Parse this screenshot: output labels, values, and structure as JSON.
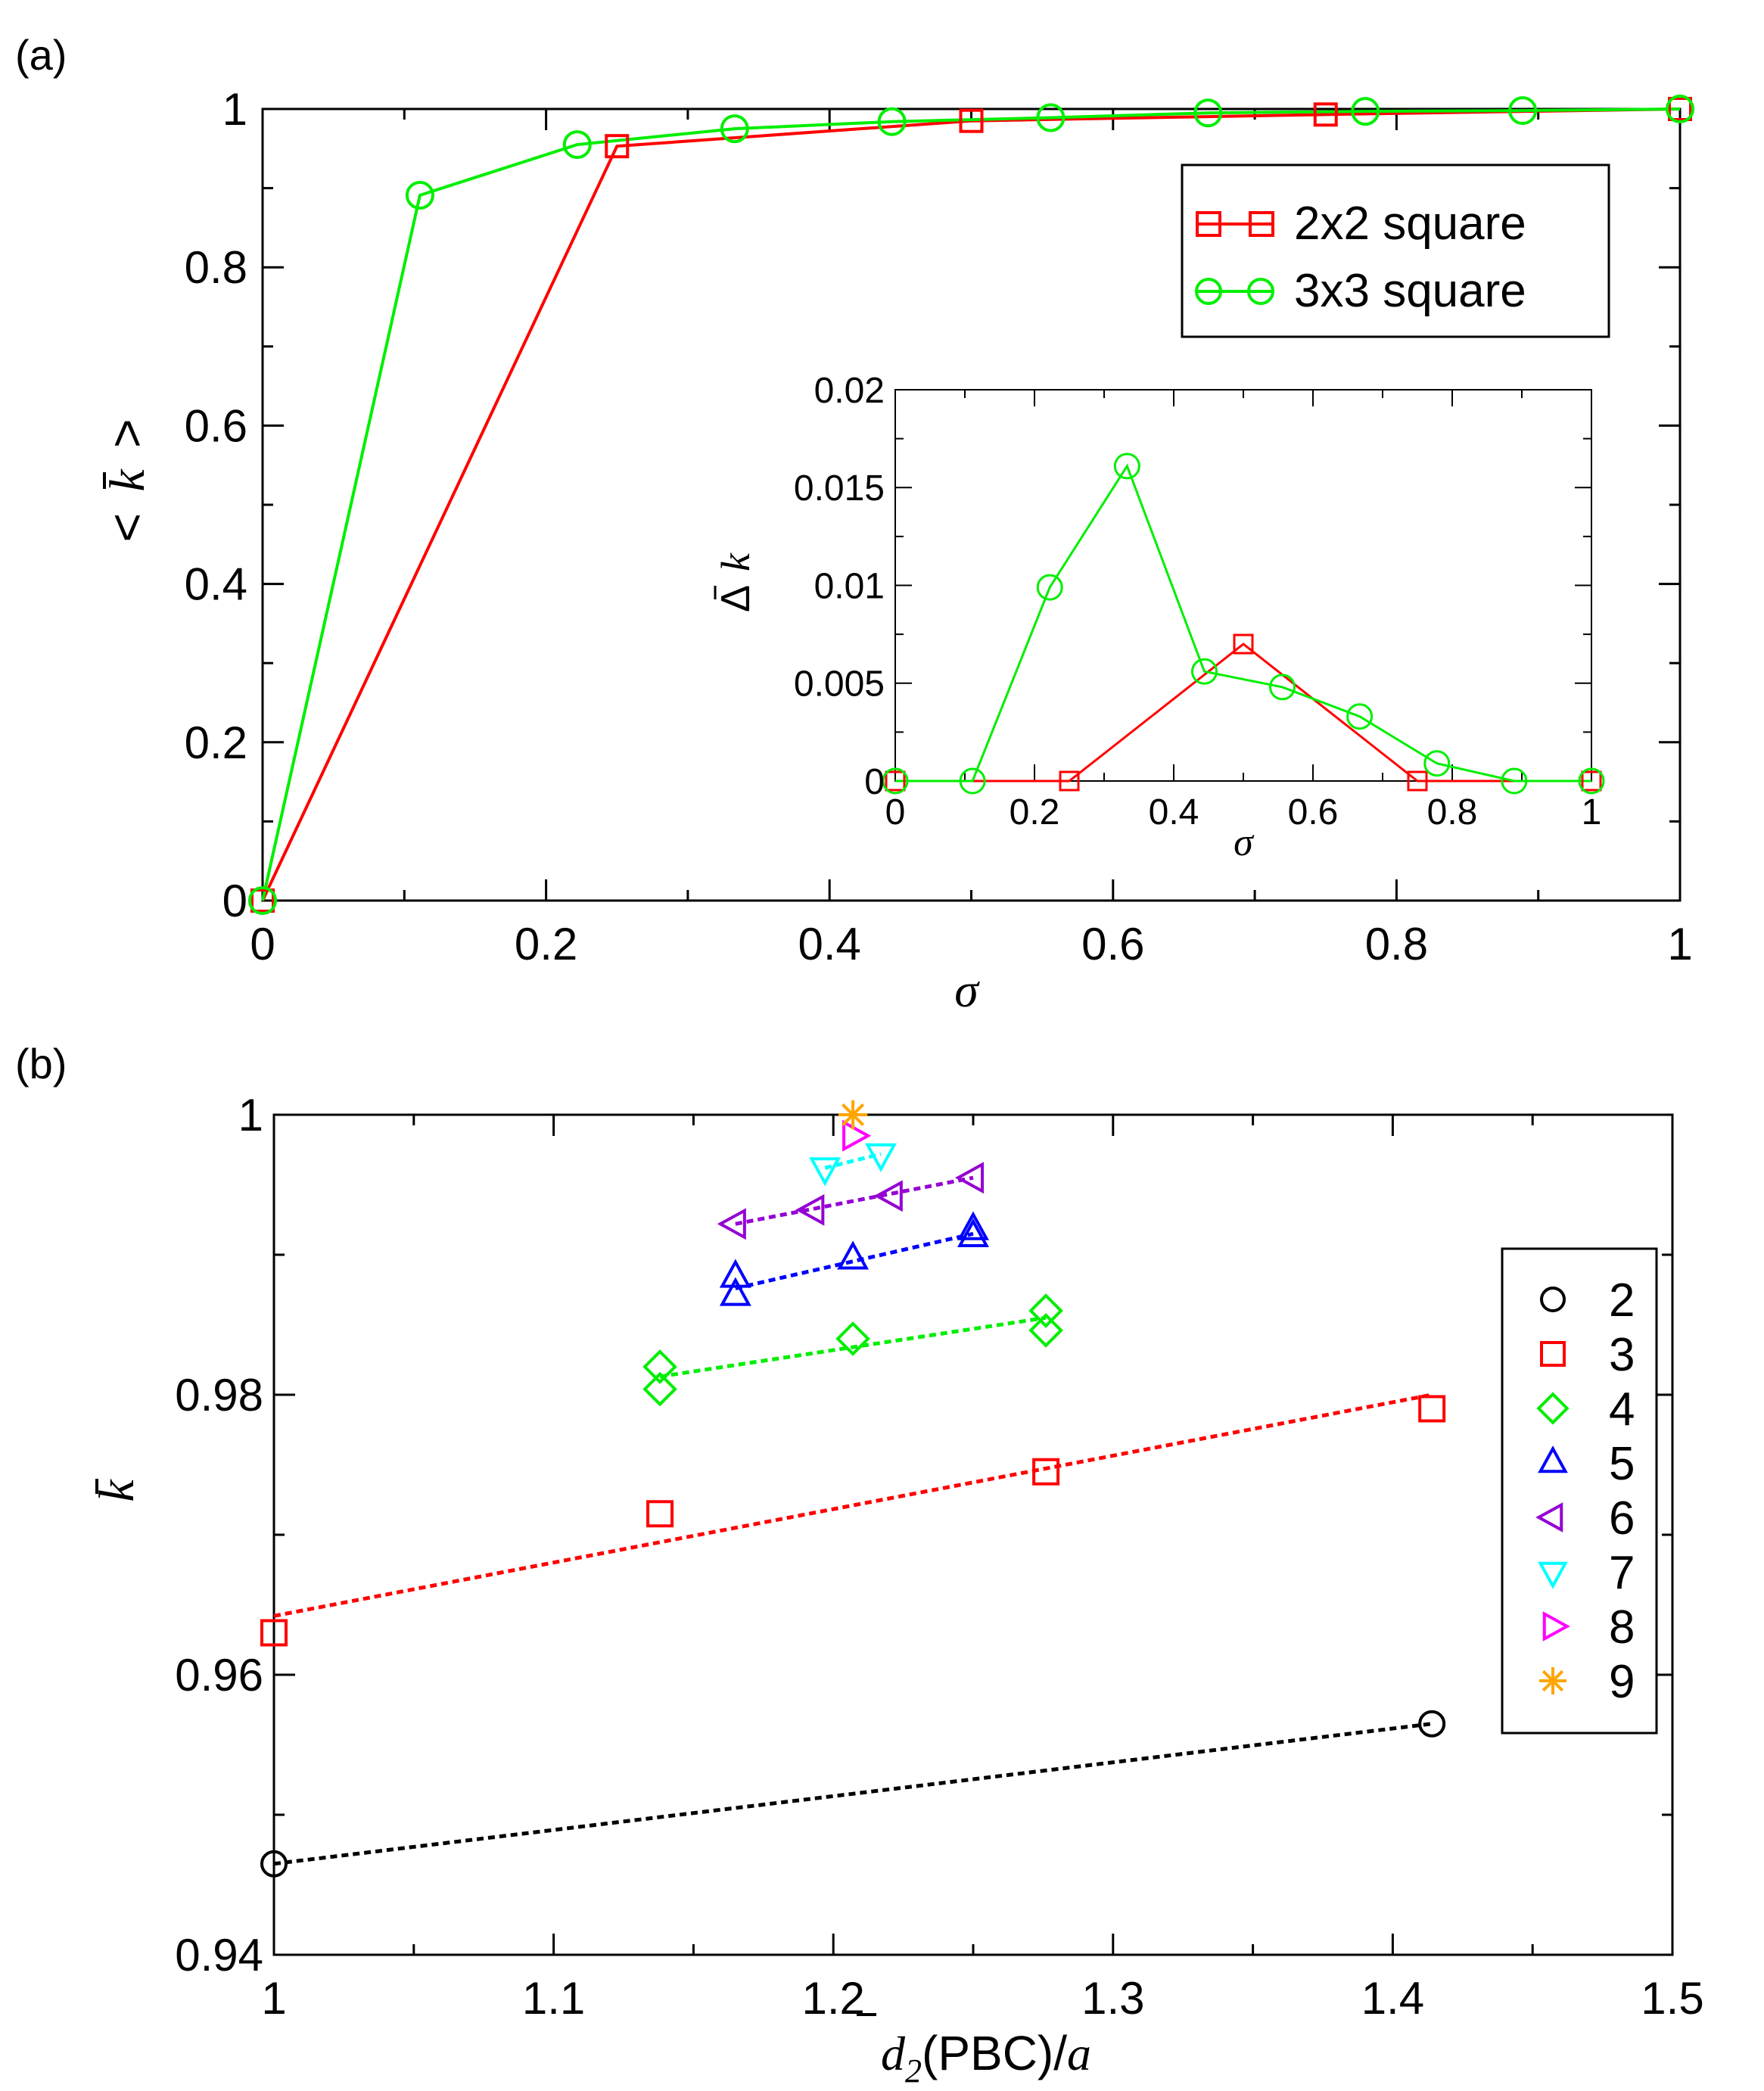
{
  "colors": {
    "red": "#ff0000",
    "green": "#00ee00",
    "black": "#000000",
    "blue": "#0000ff",
    "purple": "#9400d3",
    "cyan": "#00ffff",
    "magenta": "#ff00ff",
    "orange": "#ffa500"
  },
  "chart_data": [
    {
      "type": "line",
      "panel_label": "(a)",
      "xlabel": "σ",
      "ylabel_parts": [
        "<",
        "k",
        ">"
      ],
      "xlim": [
        0,
        1
      ],
      "ylim": [
        0,
        1
      ],
      "xticks": [
        0,
        0.2,
        0.4,
        0.6,
        0.8,
        1
      ],
      "xtick_labels": [
        "0",
        "0.2",
        "0.4",
        "0.6",
        "0.8",
        "1"
      ],
      "yticks": [
        0,
        0.2,
        0.4,
        0.6,
        0.8,
        1
      ],
      "ytick_labels": [
        "0",
        "0.2",
        "0.4",
        "0.6",
        "0.8",
        "1"
      ],
      "legend_position": "top-right",
      "series": [
        {
          "name": "2x2 square",
          "marker": "square",
          "color": "#ff0000",
          "x": [
            0,
            0.25,
            0.5,
            0.75,
            1
          ],
          "y": [
            0,
            0.953,
            0.985,
            0.993,
            1
          ]
        },
        {
          "name": "3x3 square",
          "marker": "circle",
          "color": "#00ee00",
          "x": [
            0,
            0.111,
            0.222,
            0.333,
            0.444,
            0.556,
            0.667,
            0.778,
            0.889,
            1
          ],
          "y": [
            0,
            0.891,
            0.955,
            0.975,
            0.984,
            0.989,
            0.995,
            0.997,
            0.998,
            1
          ]
        }
      ],
      "inset": {
        "type": "line",
        "xlabel": "σ",
        "ylabel_parts": [
          "Δ",
          "k"
        ],
        "xlim": [
          0,
          1
        ],
        "ylim": [
          0,
          0.02
        ],
        "xticks": [
          0,
          0.2,
          0.4,
          0.6,
          0.8,
          1
        ],
        "xtick_labels": [
          "0",
          "0.2",
          "0.4",
          "0.6",
          "0.8",
          "1"
        ],
        "yticks": [
          0,
          0.005,
          0.01,
          0.015,
          0.02
        ],
        "ytick_labels": [
          "0",
          "0.005",
          "0.01",
          "0.015",
          "0.02"
        ],
        "series": [
          {
            "name": "2x2 square",
            "marker": "square",
            "color": "#ff0000",
            "x": [
              0,
              0.25,
              0.5,
              0.75,
              1
            ],
            "y": [
              0,
              0,
              0.007,
              0,
              0
            ]
          },
          {
            "name": "3x3 square",
            "marker": "circle",
            "color": "#00ee00",
            "x": [
              0,
              0.111,
              0.222,
              0.333,
              0.444,
              0.556,
              0.667,
              0.778,
              0.889,
              1
            ],
            "y": [
              0,
              0,
              0.0099,
              0.0161,
              0.0056,
              0.0048,
              0.0033,
              0.0009,
              0,
              0
            ]
          }
        ]
      }
    },
    {
      "type": "scatter",
      "panel_label": "(b)",
      "xlabel_parts": [
        "d",
        "2",
        "(PBC)/",
        "a"
      ],
      "ylabel": "k",
      "xlim": [
        1,
        1.5
      ],
      "ylim": [
        0.94,
        1
      ],
      "xticks": [
        1,
        1.1,
        1.2,
        1.3,
        1.4,
        1.5
      ],
      "xtick_labels": [
        "1",
        "1.1",
        "1.2",
        "1.3",
        "1.4",
        "1.5"
      ],
      "yticks": [
        0.94,
        0.96,
        0.98,
        1
      ],
      "ytick_labels": [
        "0.94",
        "0.96",
        "0.98",
        "1"
      ],
      "legend_position": "right",
      "series": [
        {
          "name": "2",
          "marker": "circle",
          "color": "#000000",
          "x": [
            1.0,
            1.414
          ],
          "y": [
            0.9465,
            0.9565
          ],
          "fit": [
            [
              1.0,
              0.9465
            ],
            [
              1.414,
              0.9565
            ]
          ]
        },
        {
          "name": "3",
          "marker": "square",
          "color": "#ff0000",
          "x": [
            1.0,
            1.138,
            1.276,
            1.414
          ],
          "y": [
            0.963,
            0.9715,
            0.9745,
            0.979
          ],
          "fit": [
            [
              1.0,
              0.9642
            ],
            [
              1.414,
              0.98
            ]
          ]
        },
        {
          "name": "4",
          "marker": "diamond",
          "color": "#00ee00",
          "x": [
            1.138,
            1.138,
            1.207,
            1.276,
            1.276
          ],
          "y": [
            0.982,
            0.9804,
            0.984,
            0.986,
            0.9846
          ],
          "fit": [
            [
              1.138,
              0.9813
            ],
            [
              1.276,
              0.9855
            ]
          ]
        },
        {
          "name": "5",
          "marker": "triangle-up",
          "color": "#0000ff",
          "x": [
            1.165,
            1.165,
            1.207,
            1.25,
            1.25
          ],
          "y": [
            0.9884,
            0.9871,
            0.9897,
            0.9918,
            0.9913
          ],
          "fit": [
            [
              1.165,
              0.9876
            ],
            [
              1.25,
              0.9915
            ]
          ]
        },
        {
          "name": "6",
          "marker": "triangle-left",
          "color": "#9400d3",
          "x": [
            1.165,
            1.193,
            1.221,
            1.25
          ],
          "y": [
            0.9922,
            0.9932,
            0.9942,
            0.9955
          ],
          "fit": [
            [
              1.165,
              0.9922
            ],
            [
              1.25,
              0.9955
            ]
          ]
        },
        {
          "name": "7",
          "marker": "triangle-down",
          "color": "#00ffff",
          "x": [
            1.197,
            1.217
          ],
          "y": [
            0.9962,
            0.9972
          ],
          "fit": [
            [
              1.197,
              0.9962
            ],
            [
              1.217,
              0.9972
            ]
          ]
        },
        {
          "name": "8",
          "marker": "triangle-right",
          "color": "#ff00ff",
          "x": [
            1.207
          ],
          "y": [
            0.9985
          ]
        },
        {
          "name": "9",
          "marker": "star",
          "color": "#ffa500",
          "x": [
            1.207
          ],
          "y": [
            1.0
          ]
        }
      ]
    }
  ]
}
